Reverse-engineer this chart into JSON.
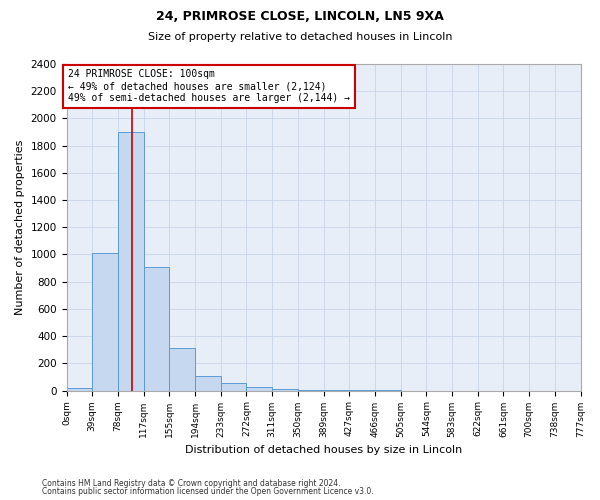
{
  "title1": "24, PRIMROSE CLOSE, LINCOLN, LN5 9XA",
  "title2": "Size of property relative to detached houses in Lincoln",
  "xlabel": "Distribution of detached houses by size in Lincoln",
  "ylabel": "Number of detached properties",
  "footnote1": "Contains HM Land Registry data © Crown copyright and database right 2024.",
  "footnote2": "Contains public sector information licensed under the Open Government Licence v3.0.",
  "bin_labels": [
    "0sqm",
    "39sqm",
    "78sqm",
    "117sqm",
    "155sqm",
    "194sqm",
    "233sqm",
    "272sqm",
    "311sqm",
    "350sqm",
    "389sqm",
    "427sqm",
    "466sqm",
    "505sqm",
    "544sqm",
    "583sqm",
    "622sqm",
    "661sqm",
    "700sqm",
    "738sqm",
    "777sqm"
  ],
  "bar_heights": [
    20,
    1010,
    1900,
    910,
    310,
    105,
    55,
    28,
    10,
    5,
    3,
    2,
    1,
    0,
    0,
    0,
    0,
    0,
    0,
    0
  ],
  "bar_color": "#c5d8f0",
  "bar_edge_color": "#5b9bd5",
  "property_line_bin": 2.56,
  "property_line_color": "#cc0000",
  "annotation_text": "24 PRIMROSE CLOSE: 100sqm\n← 49% of detached houses are smaller (2,124)\n49% of semi-detached houses are larger (2,144) →",
  "annotation_box_color": "#cc0000",
  "ylim": [
    0,
    2400
  ],
  "yticks": [
    0,
    200,
    400,
    600,
    800,
    1000,
    1200,
    1400,
    1600,
    1800,
    2000,
    2200,
    2400
  ],
  "grid_color": "#c8d4e8",
  "bg_color": "#e8eef8",
  "title1_fontsize": 9,
  "title2_fontsize": 8,
  "ylabel_fontsize": 8,
  "xlabel_fontsize": 8,
  "ytick_fontsize": 7.5,
  "xtick_fontsize": 6.5,
  "annot_fontsize": 7,
  "footnote_fontsize": 5.5
}
